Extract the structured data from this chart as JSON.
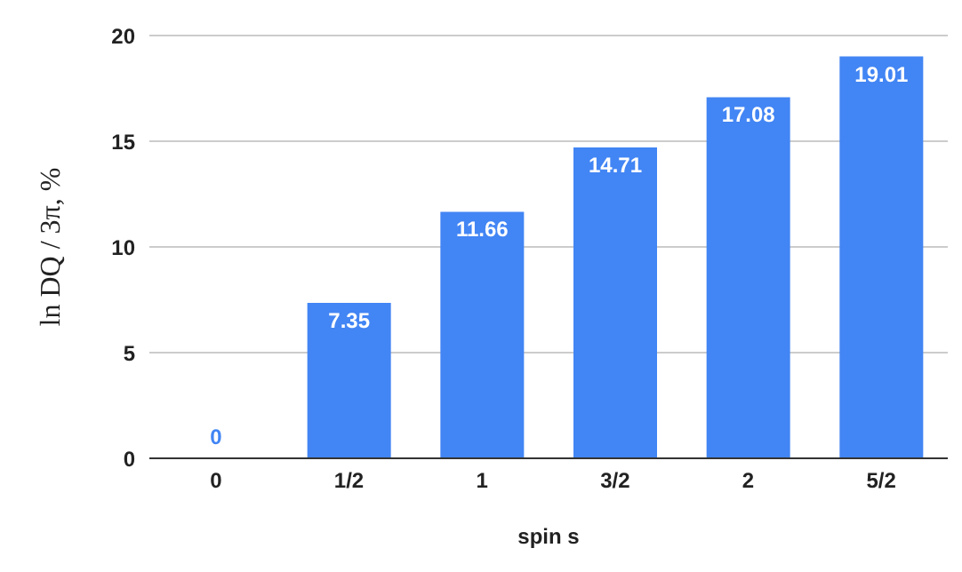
{
  "chart_data": {
    "type": "bar",
    "xlabel": "spin s",
    "ylabel": "ln DQ / 3π, %",
    "categories": [
      "0",
      "1/2",
      "1",
      "3/2",
      "2",
      "5/2"
    ],
    "values": [
      0,
      7.35,
      11.66,
      14.71,
      17.08,
      19.01
    ],
    "color": "#4285f4",
    "ylim": [
      0,
      20
    ],
    "yticks": [
      0,
      5,
      10,
      15,
      20
    ],
    "grid": "y",
    "data_labels": true
  }
}
